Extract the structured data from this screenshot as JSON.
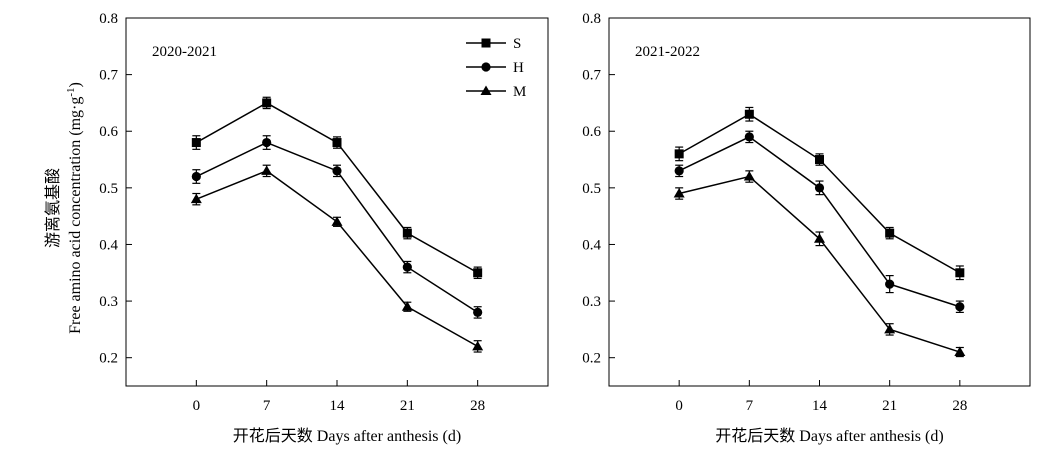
{
  "chart_data": [
    {
      "type": "line",
      "title": "2020-2021",
      "xlabel": "开花后天数 Days after anthesis (d)",
      "ylabel_cn": "游离氨基酸",
      "ylabel_en": "Free amino acid concentration (mg·g",
      "ylabel_sup": "-1",
      "ylabel_close": ")",
      "x": [
        0,
        7,
        14,
        21,
        28
      ],
      "x_ticks": [
        "0",
        "7",
        "14",
        "21",
        "28"
      ],
      "xlim": [
        -7,
        35
      ],
      "y_ticks": [
        "0.2",
        "0.3",
        "0.4",
        "0.5",
        "0.6",
        "0.7",
        "0.8"
      ],
      "ylim": [
        0.15,
        0.8
      ],
      "legend": "top-right",
      "series": [
        {
          "name": "S",
          "marker": "square",
          "values": [
            0.58,
            0.65,
            0.58,
            0.42,
            0.35
          ],
          "errors": [
            0.012,
            0.01,
            0.01,
            0.01,
            0.01
          ]
        },
        {
          "name": "H",
          "marker": "circle",
          "values": [
            0.52,
            0.58,
            0.53,
            0.36,
            0.28
          ],
          "errors": [
            0.012,
            0.012,
            0.01,
            0.01,
            0.01
          ]
        },
        {
          "name": "M",
          "marker": "triangle",
          "values": [
            0.48,
            0.53,
            0.44,
            0.29,
            0.22
          ],
          "errors": [
            0.01,
            0.01,
            0.008,
            0.008,
            0.01
          ]
        }
      ]
    },
    {
      "type": "line",
      "title": "2021-2022",
      "xlabel": "开花后天数 Days after anthesis (d)",
      "x": [
        0,
        7,
        14,
        21,
        28
      ],
      "x_ticks": [
        "0",
        "7",
        "14",
        "21",
        "28"
      ],
      "xlim": [
        -7,
        35
      ],
      "y_ticks": [
        "0.2",
        "0.3",
        "0.4",
        "0.5",
        "0.6",
        "0.7",
        "0.8"
      ],
      "ylim": [
        0.15,
        0.8
      ],
      "series": [
        {
          "name": "S",
          "marker": "square",
          "values": [
            0.56,
            0.63,
            0.55,
            0.42,
            0.35
          ],
          "errors": [
            0.012,
            0.012,
            0.01,
            0.01,
            0.012
          ]
        },
        {
          "name": "H",
          "marker": "circle",
          "values": [
            0.53,
            0.59,
            0.5,
            0.33,
            0.29
          ],
          "errors": [
            0.01,
            0.01,
            0.012,
            0.015,
            0.01
          ]
        },
        {
          "name": "M",
          "marker": "triangle",
          "values": [
            0.49,
            0.52,
            0.41,
            0.25,
            0.21
          ],
          "errors": [
            0.01,
            0.01,
            0.012,
            0.01,
            0.008
          ]
        }
      ]
    }
  ]
}
